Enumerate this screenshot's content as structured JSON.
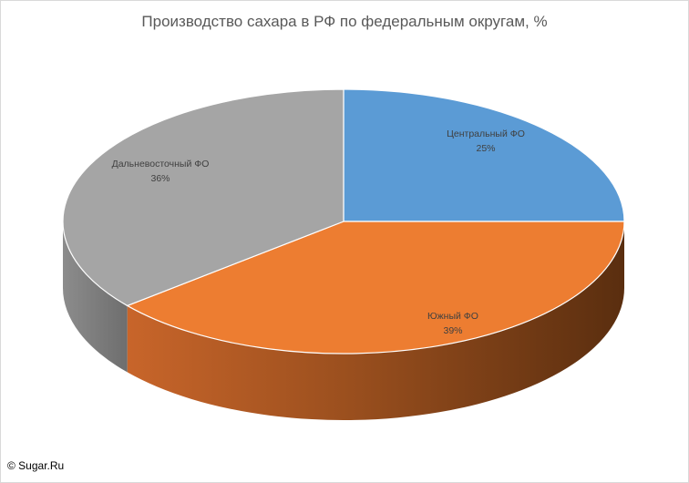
{
  "chart_data": {
    "type": "pie",
    "title": "Производство сахара в РФ по федеральным округам, %",
    "slices": [
      {
        "label": "Центральный ФО",
        "value": 25,
        "value_label": "25%",
        "color": "#5B9BD5"
      },
      {
        "label": "Южный ФО",
        "value": 39,
        "value_label": "39%",
        "color": "#ED7D31"
      },
      {
        "label": "Дальневосточный ФО",
        "value": 36,
        "value_label": "36%",
        "color": "#A5A5A5"
      }
    ],
    "legend": "none",
    "style": "3d"
  },
  "credit": "© Sugar.Ru"
}
